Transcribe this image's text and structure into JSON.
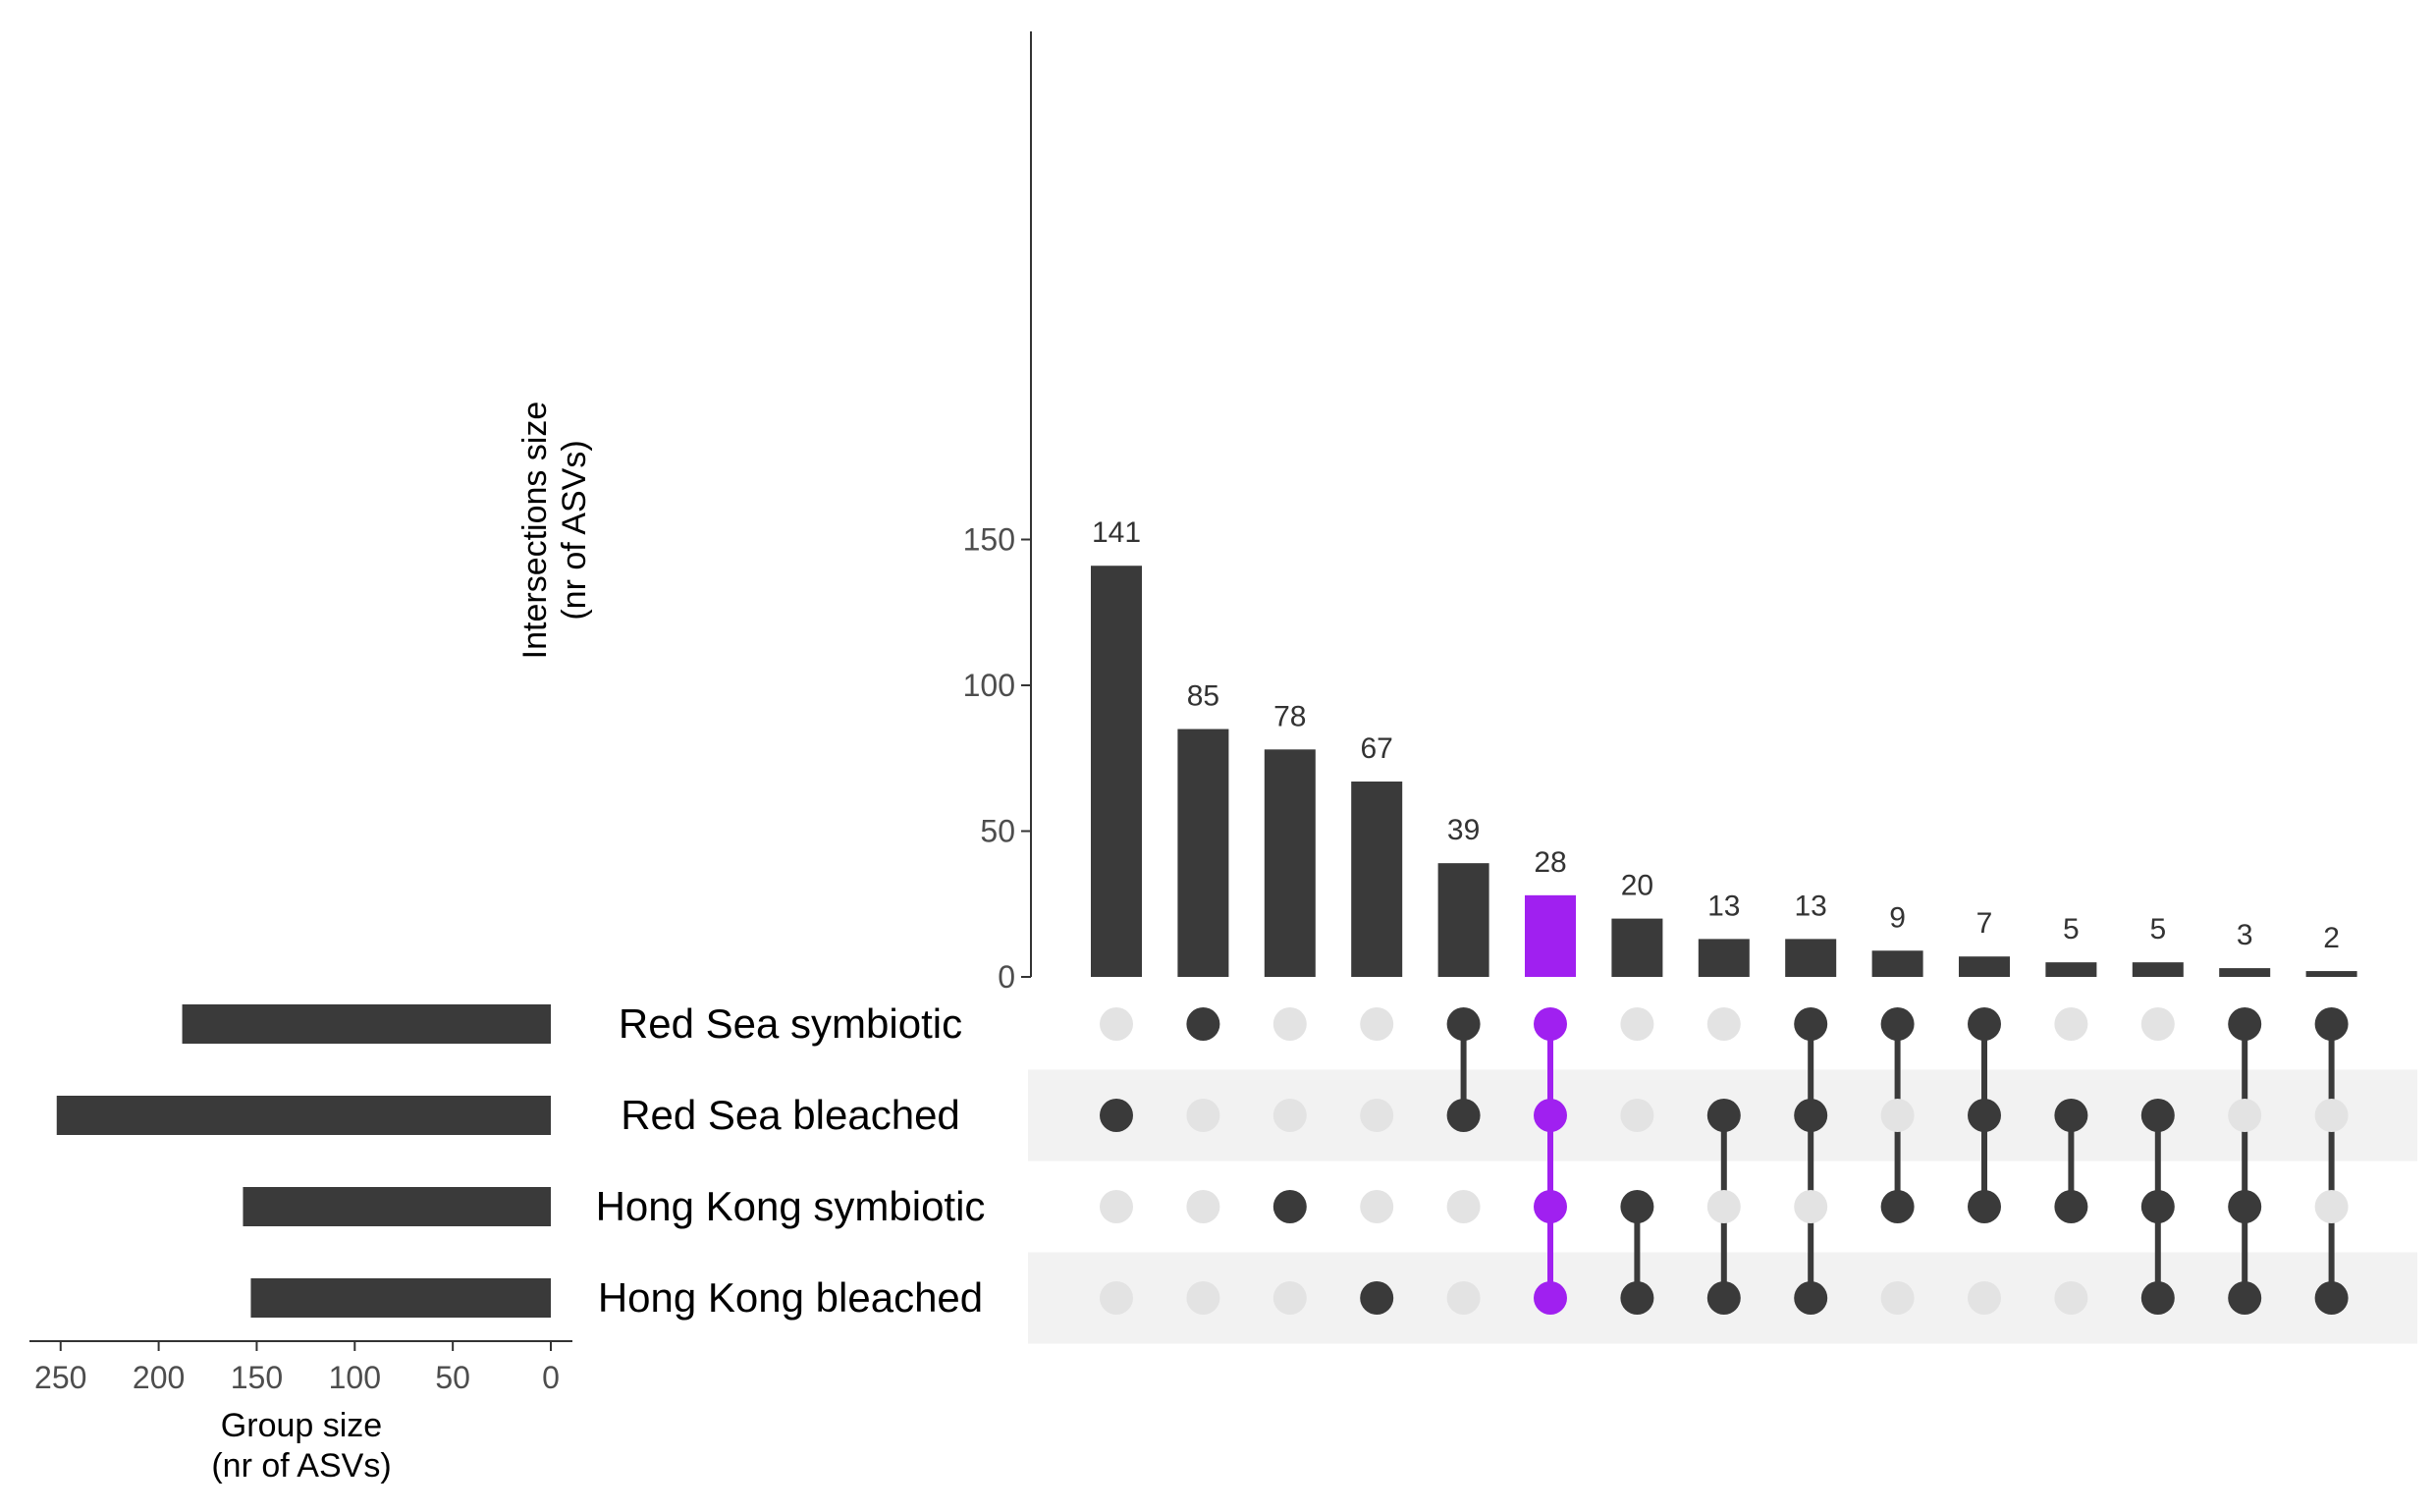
{
  "chart_data": {
    "type": "upset",
    "colors": {
      "bar": "#3a3a3a",
      "highlight": "#a020f0",
      "dot_inactive": "#e3e3e3",
      "row_band": "#f2f2f2",
      "axis": "#333333",
      "text": "#000000",
      "tick_text": "#4d4d4d",
      "label_text": "#333333"
    },
    "intersections": {
      "ylabel": "Intersections size",
      "ylabel2": "(nr of ASVs)",
      "ylim": [
        0,
        160
      ],
      "yticks": [
        0,
        50,
        100,
        150
      ],
      "values": [
        141,
        85,
        78,
        67,
        39,
        28,
        20,
        13,
        13,
        9,
        7,
        5,
        5,
        3,
        2
      ],
      "highlight_index": 5
    },
    "sets": {
      "names": [
        "Red Sea symbiotic",
        "Red Sea bleached",
        "Hong Kong symbiotic",
        "Hong Kong bleached"
      ],
      "sizes": [
        188,
        252,
        157,
        153
      ],
      "xlabel": "Group size",
      "xlabel2": "(nr of ASVs)",
      "xlim": [
        0,
        250
      ],
      "xticks": [
        250,
        200,
        150,
        100,
        50,
        0
      ]
    },
    "membership": [
      [
        1
      ],
      [
        0
      ],
      [
        2
      ],
      [
        3
      ],
      [
        0,
        1
      ],
      [
        0,
        1,
        2,
        3
      ],
      [
        2,
        3
      ],
      [
        1,
        3
      ],
      [
        0,
        1,
        3
      ],
      [
        0,
        2
      ],
      [
        0,
        1,
        2
      ],
      [
        1,
        2
      ],
      [
        1,
        2,
        3
      ],
      [
        0,
        2,
        3
      ],
      [
        0,
        3
      ]
    ]
  }
}
